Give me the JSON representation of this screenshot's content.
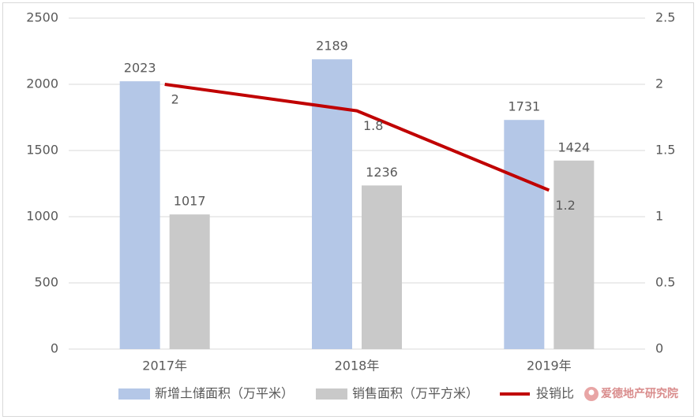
{
  "chart_data": {
    "type": "bar",
    "categories": [
      "2017年",
      "2018年",
      "2019年"
    ],
    "series": [
      {
        "name": "新增土储面积（万平米）",
        "type": "bar",
        "color": "#b4c7e7",
        "values": [
          2023,
          2189,
          1731
        ]
      },
      {
        "name": "销售面积（万平方米）",
        "type": "bar",
        "color": "#c9c9c9",
        "values": [
          1017,
          1236,
          1424
        ]
      },
      {
        "name": "投销比",
        "type": "line",
        "axis": "y2",
        "color": "#c00000",
        "values": [
          2,
          1.8,
          1.2
        ]
      }
    ],
    "ylim": [
      0,
      2500
    ],
    "yticks": [
      0,
      500,
      1000,
      1500,
      2000,
      2500
    ],
    "y2lim": [
      0,
      2.5
    ],
    "y2ticks": [
      0,
      0.5,
      1,
      1.5,
      2,
      2.5
    ],
    "grid": true,
    "legend": "bottom",
    "watermark": "爱德地产研究院"
  }
}
